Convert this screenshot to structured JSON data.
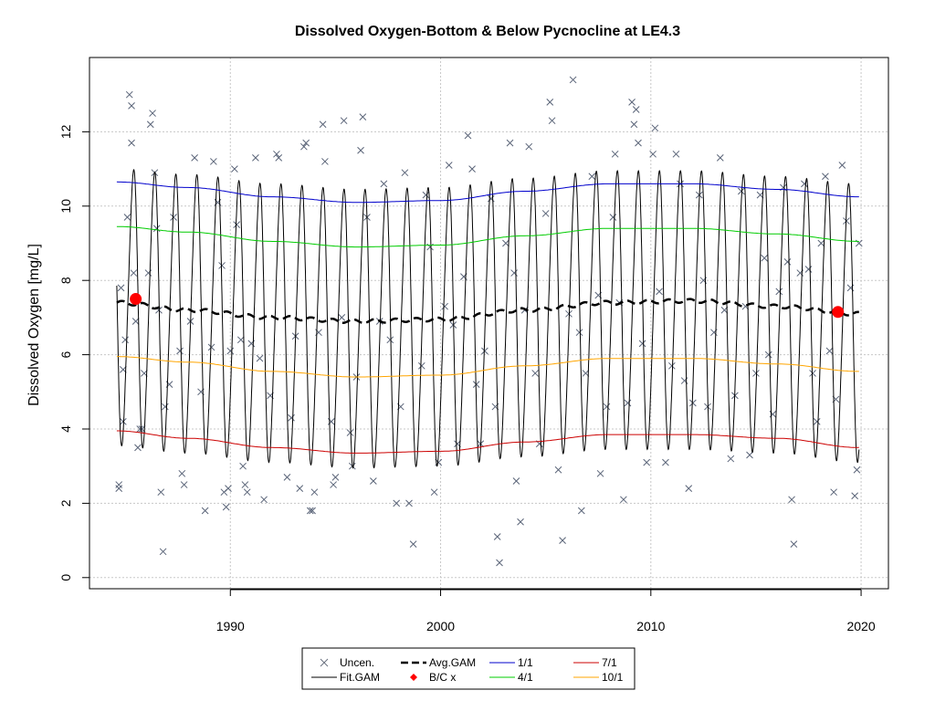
{
  "chart_data": {
    "type": "line",
    "title": "Dissolved Oxygen-Bottom & Below Pycnocline at LE4.3",
    "xlabel": "",
    "ylabel": "Dissolved Oxygen [mg/L]",
    "xlim": [
      1983.3,
      2021.3
    ],
    "ylim": [
      -0.3,
      14
    ],
    "xticks": [
      "1990",
      "2000",
      "2010",
      "2020"
    ],
    "xtick_values": [
      1990,
      2000,
      2010,
      2020
    ],
    "yticks": [
      "0",
      "2",
      "4",
      "6",
      "8",
      "10",
      "12"
    ],
    "ytick_values": [
      0,
      2,
      4,
      6,
      8,
      10,
      12
    ],
    "grid": true,
    "legend": {
      "position": "bottom-center",
      "entries": [
        {
          "label": "Uncen.",
          "kind": "cross",
          "color": "#6b7280"
        },
        {
          "label": "Fit.GAM",
          "kind": "line",
          "color": "#000000"
        },
        {
          "label": "Avg.GAM",
          "kind": "dashed",
          "color": "#000000"
        },
        {
          "label": "B/C x",
          "kind": "diamond",
          "color": "#ff0000"
        },
        {
          "label": "1/1",
          "kind": "line",
          "color": "#0000cc"
        },
        {
          "label": "4/1",
          "kind": "line",
          "color": "#00cc00"
        },
        {
          "label": "7/1",
          "kind": "line",
          "color": "#cc0000"
        },
        {
          "label": "10/1",
          "kind": "line",
          "color": "#ffa500"
        }
      ]
    },
    "x_range": [
      1984.6,
      2019.9
    ],
    "series": [
      {
        "name": "1/1",
        "color": "#0000cc",
        "x": [
          1984.6,
          1988,
          1992,
          1996,
          2000,
          2004,
          2008,
          2012,
          2016,
          2019.9
        ],
        "values": [
          10.65,
          10.5,
          10.25,
          10.1,
          10.15,
          10.4,
          10.6,
          10.6,
          10.45,
          10.25
        ]
      },
      {
        "name": "4/1",
        "color": "#00cc00",
        "x": [
          1984.6,
          1988,
          1992,
          1996,
          2000,
          2004,
          2008,
          2012,
          2016,
          2019.9
        ],
        "values": [
          9.45,
          9.3,
          9.05,
          8.9,
          8.95,
          9.2,
          9.4,
          9.4,
          9.25,
          9.05
        ]
      },
      {
        "name": "10/1",
        "color": "#ffa500",
        "x": [
          1984.6,
          1988,
          1992,
          1996,
          2000,
          2004,
          2008,
          2012,
          2016,
          2019.9
        ],
        "values": [
          5.95,
          5.8,
          5.55,
          5.4,
          5.45,
          5.7,
          5.9,
          5.9,
          5.75,
          5.55
        ]
      },
      {
        "name": "7/1",
        "color": "#cc0000",
        "x": [
          1984.6,
          1988,
          1992,
          1996,
          2000,
          2004,
          2008,
          2012,
          2016,
          2019.9
        ],
        "values": [
          3.95,
          3.75,
          3.5,
          3.35,
          3.4,
          3.65,
          3.85,
          3.85,
          3.75,
          3.5
        ]
      },
      {
        "name": "Avg.GAM",
        "color": "#000000",
        "x": [
          1984.6,
          1988,
          1992,
          1996,
          2000,
          2004,
          2008,
          2012,
          2016,
          2019.9
        ],
        "values": [
          7.4,
          7.2,
          7.0,
          6.9,
          6.95,
          7.2,
          7.4,
          7.45,
          7.3,
          7.1
        ]
      },
      {
        "name": "Fit.GAM",
        "color": "#000000",
        "note": "annual seasonal cycle between the 7/1 minimum and the 1/1 maximum envelopes"
      }
    ],
    "bc_points": [
      {
        "x": 1985.5,
        "y": 7.5
      },
      {
        "x": 2018.9,
        "y": 7.15
      }
    ],
    "uncensored_points": [
      [
        1984.7,
        2.4
      ],
      [
        1984.7,
        2.5
      ],
      [
        1984.8,
        7.8
      ],
      [
        1984.9,
        4.2
      ],
      [
        1984.9,
        5.6
      ],
      [
        1985.0,
        6.4
      ],
      [
        1985.1,
        9.7
      ],
      [
        1985.2,
        13.0
      ],
      [
        1985.3,
        12.7
      ],
      [
        1985.3,
        11.7
      ],
      [
        1985.4,
        8.2
      ],
      [
        1985.5,
        6.9
      ],
      [
        1985.6,
        3.5
      ],
      [
        1985.7,
        4.0
      ],
      [
        1985.8,
        4.0
      ],
      [
        1985.9,
        5.5
      ],
      [
        1986.1,
        8.2
      ],
      [
        1986.2,
        12.2
      ],
      [
        1986.3,
        12.5
      ],
      [
        1986.4,
        10.9
      ],
      [
        1986.5,
        9.4
      ],
      [
        1986.6,
        7.2
      ],
      [
        1986.7,
        2.3
      ],
      [
        1986.8,
        0.7
      ],
      [
        1986.9,
        4.6
      ],
      [
        1987.1,
        5.2
      ],
      [
        1987.3,
        9.7
      ],
      [
        1987.6,
        6.1
      ],
      [
        1987.7,
        2.8
      ],
      [
        1987.8,
        2.5
      ],
      [
        1988.1,
        6.9
      ],
      [
        1988.3,
        11.3
      ],
      [
        1988.6,
        5.0
      ],
      [
        1988.8,
        1.8
      ],
      [
        1989.1,
        6.2
      ],
      [
        1989.2,
        11.2
      ],
      [
        1989.4,
        10.1
      ],
      [
        1989.6,
        8.4
      ],
      [
        1989.7,
        2.3
      ],
      [
        1989.8,
        1.9
      ],
      [
        1989.9,
        2.4
      ],
      [
        1990.0,
        6.1
      ],
      [
        1990.2,
        11.0
      ],
      [
        1990.3,
        9.5
      ],
      [
        1990.5,
        6.4
      ],
      [
        1990.6,
        3.0
      ],
      [
        1990.7,
        2.5
      ],
      [
        1990.8,
        2.3
      ],
      [
        1991.0,
        6.3
      ],
      [
        1991.2,
        11.3
      ],
      [
        1991.4,
        5.9
      ],
      [
        1991.6,
        2.1
      ],
      [
        1991.9,
        4.9
      ],
      [
        1992.2,
        11.4
      ],
      [
        1992.3,
        11.3
      ],
      [
        1992.7,
        2.7
      ],
      [
        1992.9,
        4.3
      ],
      [
        1993.1,
        6.5
      ],
      [
        1993.3,
        2.4
      ],
      [
        1993.5,
        11.6
      ],
      [
        1993.6,
        11.7
      ],
      [
        1993.8,
        1.8
      ],
      [
        1993.9,
        1.8
      ],
      [
        1994.0,
        2.3
      ],
      [
        1994.2,
        6.6
      ],
      [
        1994.4,
        12.2
      ],
      [
        1994.5,
        11.2
      ],
      [
        1994.8,
        4.2
      ],
      [
        1994.9,
        2.5
      ],
      [
        1995.0,
        2.7
      ],
      [
        1995.3,
        7.0
      ],
      [
        1995.4,
        12.3
      ],
      [
        1995.7,
        3.9
      ],
      [
        1995.8,
        3.0
      ],
      [
        1996.0,
        5.4
      ],
      [
        1996.2,
        11.5
      ],
      [
        1996.3,
        12.4
      ],
      [
        1996.5,
        9.7
      ],
      [
        1996.8,
        2.6
      ],
      [
        1997.1,
        6.9
      ],
      [
        1997.3,
        10.6
      ],
      [
        1997.6,
        6.4
      ],
      [
        1997.9,
        2.0
      ],
      [
        1998.1,
        4.6
      ],
      [
        1998.3,
        10.9
      ],
      [
        1998.5,
        2.0
      ],
      [
        1998.7,
        0.9
      ],
      [
        1999.1,
        5.7
      ],
      [
        1999.3,
        10.3
      ],
      [
        1999.5,
        8.9
      ],
      [
        1999.7,
        2.3
      ],
      [
        1999.9,
        3.1
      ],
      [
        2000.2,
        7.3
      ],
      [
        2000.4,
        11.1
      ],
      [
        2000.6,
        6.8
      ],
      [
        2000.8,
        3.6
      ],
      [
        2001.1,
        8.1
      ],
      [
        2001.3,
        11.9
      ],
      [
        2001.5,
        11.0
      ],
      [
        2001.7,
        5.2
      ],
      [
        2001.9,
        3.6
      ],
      [
        2002.1,
        6.1
      ],
      [
        2002.4,
        10.2
      ],
      [
        2002.6,
        4.6
      ],
      [
        2002.7,
        1.1
      ],
      [
        2002.8,
        0.4
      ],
      [
        2003.1,
        9.0
      ],
      [
        2003.3,
        11.7
      ],
      [
        2003.5,
        8.2
      ],
      [
        2003.6,
        2.6
      ],
      [
        2003.8,
        1.5
      ],
      [
        2004.0,
        7.2
      ],
      [
        2004.2,
        11.6
      ],
      [
        2004.5,
        5.5
      ],
      [
        2004.7,
        3.6
      ],
      [
        2005.0,
        9.8
      ],
      [
        2005.2,
        12.8
      ],
      [
        2005.3,
        12.3
      ],
      [
        2005.6,
        2.9
      ],
      [
        2005.8,
        1.0
      ],
      [
        2006.1,
        7.1
      ],
      [
        2006.3,
        13.4
      ],
      [
        2006.6,
        6.6
      ],
      [
        2006.7,
        1.8
      ],
      [
        2006.9,
        5.5
      ],
      [
        2007.2,
        10.8
      ],
      [
        2007.5,
        7.6
      ],
      [
        2007.6,
        2.8
      ],
      [
        2007.9,
        4.6
      ],
      [
        2008.2,
        9.7
      ],
      [
        2008.3,
        11.4
      ],
      [
        2008.5,
        7.4
      ],
      [
        2008.7,
        2.1
      ],
      [
        2008.9,
        4.7
      ],
      [
        2009.1,
        12.8
      ],
      [
        2009.2,
        12.2
      ],
      [
        2009.3,
        12.6
      ],
      [
        2009.4,
        11.7
      ],
      [
        2009.6,
        6.3
      ],
      [
        2009.8,
        3.1
      ],
      [
        2010.1,
        11.4
      ],
      [
        2010.2,
        12.1
      ],
      [
        2010.4,
        7.7
      ],
      [
        2010.7,
        3.1
      ],
      [
        2011.0,
        5.7
      ],
      [
        2011.2,
        11.4
      ],
      [
        2011.4,
        10.6
      ],
      [
        2011.6,
        5.3
      ],
      [
        2011.8,
        2.4
      ],
      [
        2012.0,
        4.7
      ],
      [
        2012.3,
        10.3
      ],
      [
        2012.5,
        8.0
      ],
      [
        2012.7,
        4.6
      ],
      [
        2013.0,
        6.6
      ],
      [
        2013.3,
        11.3
      ],
      [
        2013.5,
        7.2
      ],
      [
        2013.8,
        3.2
      ],
      [
        2014.0,
        4.9
      ],
      [
        2014.3,
        10.4
      ],
      [
        2014.5,
        7.3
      ],
      [
        2014.7,
        3.3
      ],
      [
        2015.0,
        5.5
      ],
      [
        2015.2,
        10.3
      ],
      [
        2015.4,
        8.6
      ],
      [
        2015.6,
        6.0
      ],
      [
        2015.8,
        4.4
      ],
      [
        2016.1,
        7.7
      ],
      [
        2016.3,
        10.5
      ],
      [
        2016.5,
        8.5
      ],
      [
        2016.7,
        2.1
      ],
      [
        2016.8,
        0.9
      ],
      [
        2017.1,
        8.2
      ],
      [
        2017.3,
        10.6
      ],
      [
        2017.5,
        8.3
      ],
      [
        2017.7,
        5.5
      ],
      [
        2017.9,
        4.2
      ],
      [
        2018.1,
        9.0
      ],
      [
        2018.3,
        10.8
      ],
      [
        2018.5,
        6.1
      ],
      [
        2018.7,
        2.3
      ],
      [
        2018.8,
        4.8
      ],
      [
        2019.1,
        11.1
      ],
      [
        2019.3,
        9.6
      ],
      [
        2019.5,
        7.8
      ],
      [
        2019.7,
        2.2
      ],
      [
        2019.8,
        2.9
      ],
      [
        2019.9,
        9.0
      ]
    ]
  }
}
